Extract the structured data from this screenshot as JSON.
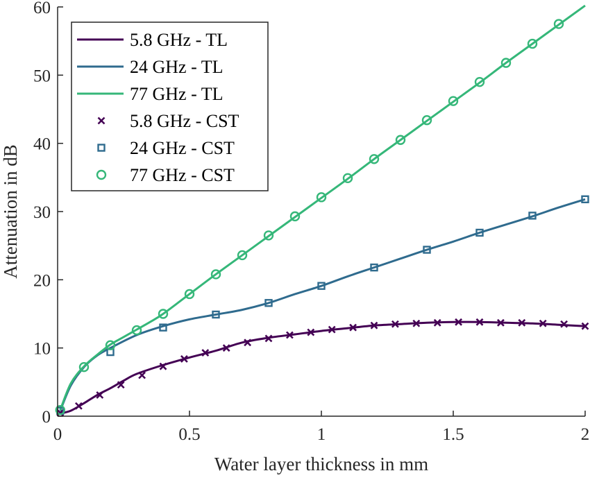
{
  "chart_data": {
    "type": "line",
    "xlabel": "Water layer thickness in mm",
    "ylabel": "Attenuation in dB",
    "xlim": [
      0,
      2
    ],
    "ylim": [
      0,
      60
    ],
    "xticks": [
      0,
      0.5,
      1,
      1.5,
      2
    ],
    "xtick_labels": [
      "0",
      "0.5",
      "1",
      "1.5",
      "2"
    ],
    "yticks": [
      0,
      10,
      20,
      30,
      40,
      50,
      60
    ],
    "ytick_labels": [
      "0",
      "10",
      "20",
      "30",
      "40",
      "50",
      "60"
    ],
    "grid": false,
    "legend_position": "top-left",
    "series": [
      {
        "name": "5.8 GHz - TL",
        "kind": "line",
        "color": "#440154",
        "x": [
          0.01,
          0.05,
          0.1,
          0.15,
          0.2,
          0.25,
          0.3,
          0.4,
          0.5,
          0.6,
          0.7,
          0.8,
          0.9,
          1.0,
          1.1,
          1.2,
          1.3,
          1.4,
          1.5,
          1.6,
          1.7,
          1.8,
          1.9,
          2.0
        ],
        "y": [
          0.4,
          0.8,
          1.9,
          3.1,
          4.1,
          5.2,
          6.2,
          7.5,
          8.6,
          9.6,
          10.8,
          11.5,
          12.0,
          12.5,
          12.9,
          13.3,
          13.5,
          13.7,
          13.8,
          13.8,
          13.7,
          13.6,
          13.4,
          13.2
        ]
      },
      {
        "name": "24 GHz - TL",
        "kind": "line",
        "color": "#2f6b8e",
        "x": [
          0.01,
          0.05,
          0.1,
          0.15,
          0.2,
          0.3,
          0.4,
          0.5,
          0.6,
          0.7,
          0.8,
          0.9,
          1.0,
          1.1,
          1.2,
          1.3,
          1.4,
          1.5,
          1.6,
          1.7,
          1.8,
          1.9,
          2.0
        ],
        "y": [
          0.8,
          4.5,
          7.2,
          8.9,
          10.0,
          11.9,
          13.2,
          14.2,
          14.9,
          15.6,
          16.6,
          17.9,
          19.1,
          20.5,
          21.8,
          23.1,
          24.4,
          25.6,
          26.9,
          28.1,
          29.3,
          30.6,
          31.8
        ]
      },
      {
        "name": "77 GHz - TL",
        "kind": "line",
        "color": "#35b779",
        "x": [
          0.01,
          0.05,
          0.1,
          0.15,
          0.2,
          0.25,
          0.3,
          0.35,
          0.4,
          0.5,
          0.6,
          0.7,
          0.8,
          0.9,
          1.0,
          1.1,
          1.2,
          1.3,
          1.4,
          1.5,
          1.6,
          1.7,
          1.8,
          1.9,
          2.0
        ],
        "y": [
          0.9,
          4.8,
          7.3,
          9.0,
          10.5,
          11.6,
          12.7,
          13.8,
          15.0,
          17.9,
          20.8,
          23.6,
          26.4,
          29.2,
          32.0,
          34.8,
          37.7,
          40.5,
          43.3,
          46.1,
          48.9,
          51.8,
          54.6,
          57.4,
          60.2
        ]
      },
      {
        "name": "5.8 GHz - CST",
        "kind": "marker",
        "marker": "x",
        "color": "#440154",
        "x": [
          0.01,
          0.08,
          0.16,
          0.24,
          0.32,
          0.4,
          0.48,
          0.56,
          0.64,
          0.72,
          0.8,
          0.88,
          0.96,
          1.04,
          1.12,
          1.2,
          1.28,
          1.36,
          1.44,
          1.52,
          1.6,
          1.68,
          1.76,
          1.84,
          1.92,
          2.0
        ],
        "y": [
          0.5,
          1.5,
          3.1,
          4.6,
          6.0,
          7.3,
          8.4,
          9.3,
          10.0,
          10.8,
          11.4,
          11.9,
          12.3,
          12.7,
          13.0,
          13.3,
          13.5,
          13.6,
          13.7,
          13.8,
          13.8,
          13.7,
          13.7,
          13.6,
          13.5,
          13.2
        ]
      },
      {
        "name": "24 GHz - CST",
        "kind": "marker",
        "marker": "square",
        "color": "#2f6b8e",
        "x": [
          0.01,
          0.2,
          0.4,
          0.6,
          0.8,
          1.0,
          1.2,
          1.4,
          1.6,
          1.8,
          2.0
        ],
        "y": [
          0.8,
          9.4,
          13.0,
          14.9,
          16.6,
          19.1,
          21.8,
          24.4,
          26.9,
          29.4,
          31.8
        ]
      },
      {
        "name": "77 GHz - CST",
        "kind": "marker",
        "marker": "circle",
        "color": "#35b779",
        "x": [
          0.01,
          0.1,
          0.2,
          0.3,
          0.4,
          0.5,
          0.6,
          0.7,
          0.8,
          0.9,
          1.0,
          1.1,
          1.2,
          1.3,
          1.4,
          1.5,
          1.6,
          1.7,
          1.8,
          1.9
        ],
        "y": [
          0.9,
          7.2,
          10.4,
          12.6,
          15.0,
          17.9,
          20.8,
          23.6,
          26.5,
          29.3,
          32.1,
          34.9,
          37.7,
          40.5,
          43.4,
          46.2,
          49.0,
          51.8,
          54.6,
          57.5
        ]
      }
    ]
  }
}
